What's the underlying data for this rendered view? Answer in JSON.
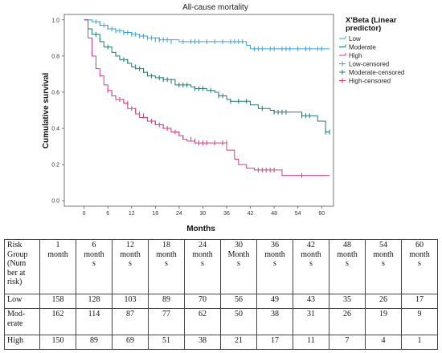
{
  "chart_data": {
    "type": "line",
    "title": "All-cause mortality",
    "xlabel": "Months",
    "ylabel": "Cumulative survival",
    "xlim": [
      -5,
      63
    ],
    "ylim": [
      -0.03,
      1.03
    ],
    "x_ticks": [
      0,
      6,
      12,
      18,
      24,
      30,
      36,
      42,
      48,
      54,
      60
    ],
    "y_ticks": [
      0.0,
      0.2,
      0.4,
      0.6,
      0.8,
      1.0
    ],
    "y_tick_labels": [
      "0.0",
      "0.2",
      "0.4",
      "0.6",
      "0.8",
      "1.0"
    ],
    "legend_title": "X'Beta (Linear predictor)",
    "legend_title_lines": [
      "X'Beta (Linear",
      "predictor)"
    ],
    "legend_position": "right",
    "legend": [
      {
        "label": "Low",
        "color": "#3aa3dd",
        "kind": "line"
      },
      {
        "label": "Moderate",
        "color": "#1f7a73",
        "kind": "line"
      },
      {
        "label": "High",
        "color": "#d43f82",
        "kind": "line"
      },
      {
        "label": "Low-censored",
        "color": "#3aa3dd",
        "kind": "censor"
      },
      {
        "label": "Moderate-censored",
        "color": "#1f7a73",
        "kind": "censor"
      },
      {
        "label": "High-censored",
        "color": "#d43f82",
        "kind": "censor"
      }
    ],
    "series": [
      {
        "name": "Low",
        "color": "#3aa3dd",
        "steps": [
          [
            0,
            1.0
          ],
          [
            2,
            0.99
          ],
          [
            4,
            0.97
          ],
          [
            6,
            0.95
          ],
          [
            8,
            0.94
          ],
          [
            10,
            0.93
          ],
          [
            12,
            0.92
          ],
          [
            14,
            0.91
          ],
          [
            16,
            0.9
          ],
          [
            19,
            0.89
          ],
          [
            24,
            0.88
          ],
          [
            41,
            0.86
          ],
          [
            42,
            0.84
          ],
          [
            62,
            0.84
          ]
        ],
        "censored": [
          [
            3,
            0.99
          ],
          [
            4,
            0.98
          ],
          [
            5,
            0.97
          ],
          [
            6,
            0.96
          ],
          [
            7,
            0.95
          ],
          [
            8,
            0.94
          ],
          [
            9,
            0.94
          ],
          [
            10,
            0.93
          ],
          [
            11,
            0.93
          ],
          [
            12,
            0.92
          ],
          [
            13,
            0.92
          ],
          [
            14,
            0.91
          ],
          [
            15,
            0.91
          ],
          [
            16,
            0.9
          ],
          [
            17,
            0.9
          ],
          [
            18,
            0.89
          ],
          [
            19,
            0.89
          ],
          [
            20,
            0.89
          ],
          [
            21,
            0.89
          ],
          [
            22,
            0.88
          ],
          [
            25,
            0.88
          ],
          [
            27,
            0.88
          ],
          [
            28,
            0.88
          ],
          [
            29,
            0.88
          ],
          [
            31,
            0.88
          ],
          [
            33,
            0.88
          ],
          [
            35,
            0.88
          ],
          [
            37,
            0.88
          ],
          [
            38,
            0.88
          ],
          [
            39,
            0.88
          ],
          [
            40,
            0.88
          ],
          [
            43,
            0.84
          ],
          [
            44,
            0.84
          ],
          [
            45,
            0.84
          ],
          [
            47,
            0.84
          ],
          [
            48,
            0.84
          ],
          [
            50,
            0.84
          ],
          [
            51,
            0.84
          ],
          [
            52,
            0.84
          ],
          [
            54,
            0.84
          ],
          [
            56,
            0.84
          ],
          [
            57,
            0.84
          ],
          [
            59,
            0.84
          ],
          [
            60,
            0.84
          ]
        ]
      },
      {
        "name": "Moderate",
        "color": "#1f7a73",
        "steps": [
          [
            0,
            1.0
          ],
          [
            1,
            0.95
          ],
          [
            2,
            0.92
          ],
          [
            4,
            0.88
          ],
          [
            5,
            0.85
          ],
          [
            7,
            0.82
          ],
          [
            8,
            0.8
          ],
          [
            9,
            0.78
          ],
          [
            11,
            0.76
          ],
          [
            12,
            0.74
          ],
          [
            13,
            0.73
          ],
          [
            15,
            0.71
          ],
          [
            16,
            0.69
          ],
          [
            18,
            0.68
          ],
          [
            20,
            0.67
          ],
          [
            23,
            0.64
          ],
          [
            27,
            0.63
          ],
          [
            28,
            0.62
          ],
          [
            31,
            0.61
          ],
          [
            33,
            0.6
          ],
          [
            34,
            0.58
          ],
          [
            36,
            0.56
          ],
          [
            37,
            0.55
          ],
          [
            42,
            0.53
          ],
          [
            44,
            0.51
          ],
          [
            47,
            0.5
          ],
          [
            48,
            0.49
          ],
          [
            55,
            0.47
          ],
          [
            59,
            0.44
          ],
          [
            61,
            0.38
          ],
          [
            62,
            0.38
          ]
        ],
        "censored": [
          [
            3,
            0.92
          ],
          [
            4,
            0.89
          ],
          [
            6,
            0.85
          ],
          [
            8,
            0.81
          ],
          [
            9,
            0.79
          ],
          [
            10,
            0.78
          ],
          [
            11,
            0.77
          ],
          [
            13,
            0.74
          ],
          [
            14,
            0.73
          ],
          [
            15,
            0.72
          ],
          [
            16,
            0.7
          ],
          [
            17,
            0.69
          ],
          [
            19,
            0.68
          ],
          [
            20,
            0.67
          ],
          [
            21,
            0.67
          ],
          [
            22,
            0.66
          ],
          [
            24,
            0.64
          ],
          [
            25,
            0.64
          ],
          [
            26,
            0.64
          ],
          [
            28,
            0.62
          ],
          [
            29,
            0.62
          ],
          [
            30,
            0.62
          ],
          [
            32,
            0.61
          ],
          [
            34,
            0.58
          ],
          [
            35,
            0.58
          ],
          [
            37,
            0.55
          ],
          [
            39,
            0.55
          ],
          [
            41,
            0.55
          ],
          [
            45,
            0.51
          ],
          [
            48,
            0.49
          ],
          [
            49,
            0.49
          ],
          [
            50,
            0.49
          ],
          [
            51,
            0.49
          ],
          [
            55,
            0.47
          ],
          [
            56,
            0.47
          ],
          [
            57,
            0.47
          ],
          [
            61,
            0.38
          ],
          [
            62,
            0.38
          ]
        ]
      },
      {
        "name": "High",
        "color": "#d43f82",
        "steps": [
          [
            0,
            1.0
          ],
          [
            1,
            0.9
          ],
          [
            2,
            0.8
          ],
          [
            3,
            0.73
          ],
          [
            4,
            0.69
          ],
          [
            5,
            0.64
          ],
          [
            6,
            0.61
          ],
          [
            7,
            0.58
          ],
          [
            8,
            0.56
          ],
          [
            10,
            0.54
          ],
          [
            11,
            0.51
          ],
          [
            13,
            0.48
          ],
          [
            14,
            0.46
          ],
          [
            16,
            0.44
          ],
          [
            18,
            0.42
          ],
          [
            20,
            0.4
          ],
          [
            22,
            0.38
          ],
          [
            24,
            0.36
          ],
          [
            25,
            0.34
          ],
          [
            26,
            0.33
          ],
          [
            28,
            0.32
          ],
          [
            36,
            0.28
          ],
          [
            38,
            0.23
          ],
          [
            39,
            0.2
          ],
          [
            41,
            0.18
          ],
          [
            43,
            0.17
          ],
          [
            50,
            0.14
          ],
          [
            62,
            0.14
          ]
        ],
        "censored": [
          [
            2,
            0.82
          ],
          [
            3,
            0.75
          ],
          [
            6,
            0.61
          ],
          [
            7,
            0.59
          ],
          [
            8,
            0.57
          ],
          [
            9,
            0.56
          ],
          [
            10,
            0.55
          ],
          [
            11,
            0.54
          ],
          [
            12,
            0.51
          ],
          [
            13,
            0.5
          ],
          [
            14,
            0.48
          ],
          [
            15,
            0.47
          ],
          [
            16,
            0.45
          ],
          [
            17,
            0.44
          ],
          [
            18,
            0.43
          ],
          [
            19,
            0.42
          ],
          [
            20,
            0.41
          ],
          [
            21,
            0.4
          ],
          [
            22,
            0.39
          ],
          [
            23,
            0.38
          ],
          [
            24,
            0.37
          ],
          [
            25,
            0.35
          ],
          [
            27,
            0.34
          ],
          [
            28,
            0.33
          ],
          [
            29,
            0.32
          ],
          [
            30,
            0.32
          ],
          [
            31,
            0.32
          ],
          [
            33,
            0.32
          ],
          [
            35,
            0.32
          ],
          [
            36,
            0.32
          ],
          [
            44,
            0.17
          ],
          [
            45,
            0.17
          ],
          [
            46,
            0.17
          ],
          [
            47,
            0.17
          ],
          [
            48,
            0.17
          ],
          [
            55,
            0.14
          ]
        ]
      }
    ]
  },
  "risk_table": {
    "header": [
      [
        "Risk",
        "Group",
        "(Num",
        "ber at",
        "risk)"
      ],
      [
        "1",
        "month"
      ],
      [
        "6",
        "month",
        "s"
      ],
      [
        "12",
        "month",
        "s"
      ],
      [
        "18",
        "month",
        "s"
      ],
      [
        "24",
        "month",
        "s"
      ],
      [
        "30",
        "Month",
        "s"
      ],
      [
        "36",
        "month",
        "s"
      ],
      [
        "42",
        "month",
        "s"
      ],
      [
        "48",
        "month",
        "s"
      ],
      [
        "54",
        "month",
        "s"
      ],
      [
        "60",
        "month",
        "s"
      ]
    ],
    "rows": [
      {
        "label": [
          "Low"
        ],
        "values": [
          "158",
          "128",
          "103",
          "89",
          "70",
          "56",
          "49",
          "43",
          "35",
          "26",
          "17"
        ]
      },
      {
        "label": [
          "Mod-",
          "erate"
        ],
        "values": [
          "162",
          "114",
          "87",
          "77",
          "62",
          "50",
          "38",
          "31",
          "26",
          "19",
          "9"
        ]
      },
      {
        "label": [
          "High"
        ],
        "values": [
          "150",
          "89",
          "69",
          "51",
          "38",
          "21",
          "17",
          "11",
          "7",
          "4",
          "1"
        ]
      }
    ]
  }
}
